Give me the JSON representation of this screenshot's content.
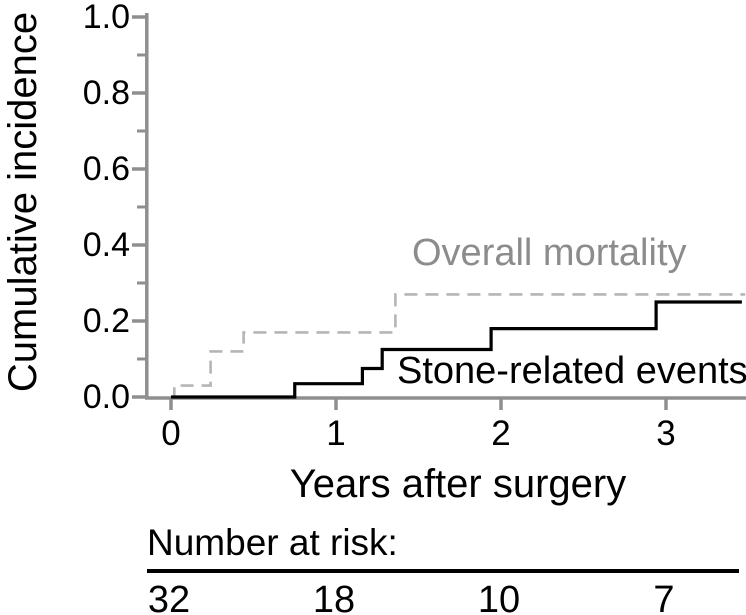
{
  "colors": {
    "axis": "#8f8f8f",
    "black_series": "#000000",
    "gray_series_line": "#b5b5b5",
    "gray_series_label": "#8c8c8c",
    "text": "#000000",
    "background": "#ffffff"
  },
  "chart_data": {
    "type": "line",
    "subtype": "step-function-cumulative-incidence",
    "title": "",
    "xlabel": "Years after surgery",
    "ylabel": "Cumulative incidence",
    "xlim": [
      -0.15,
      3.48
    ],
    "ylim": [
      0,
      1.0
    ],
    "grid": false,
    "x_tick_values": [
      0,
      1,
      2,
      3
    ],
    "x_tick_labels": [
      "0",
      "1",
      "2",
      "3"
    ],
    "y_tick_values": [
      0.0,
      0.2,
      0.4,
      0.6,
      0.8,
      1.0
    ],
    "y_tick_labels": [
      "0.0",
      "0.2",
      "0.4",
      "0.6",
      "0.8",
      "1.0"
    ],
    "y_minor_tick_values": [
      0.1,
      0.3,
      0.5,
      0.7,
      0.9
    ],
    "legend_position": "labels-inside-plot",
    "series": [
      {
        "name": "Overall mortality",
        "style": "dashed",
        "points": [
          [
            0,
            0
          ],
          [
            0.02,
            0
          ],
          [
            0.02,
            0.03
          ],
          [
            0.24,
            0.03
          ],
          [
            0.24,
            0.12
          ],
          [
            0.44,
            0.12
          ],
          [
            0.44,
            0.17
          ],
          [
            1.36,
            0.17
          ],
          [
            1.36,
            0.27
          ],
          [
            3.48,
            0.27
          ]
        ]
      },
      {
        "name": "Stone-related events",
        "style": "solid",
        "points": [
          [
            0,
            0
          ],
          [
            0.75,
            0
          ],
          [
            0.75,
            0.035
          ],
          [
            1.16,
            0.035
          ],
          [
            1.16,
            0.075
          ],
          [
            1.28,
            0.075
          ],
          [
            1.28,
            0.125
          ],
          [
            1.94,
            0.125
          ],
          [
            1.94,
            0.18
          ],
          [
            2.94,
            0.18
          ],
          [
            2.94,
            0.25
          ],
          [
            3.46,
            0.25
          ]
        ]
      }
    ],
    "number_at_risk": {
      "title": "Number at risk:",
      "times": [
        0,
        1,
        2,
        3
      ],
      "counts": [
        "32",
        "18",
        "10",
        "7"
      ]
    }
  }
}
